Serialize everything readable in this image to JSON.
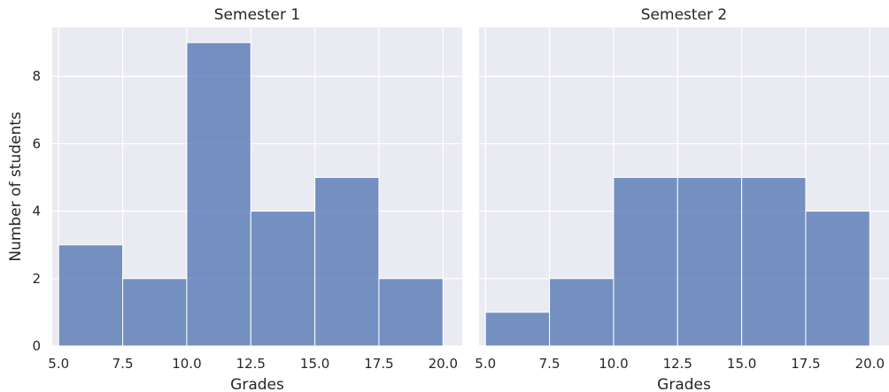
{
  "chart_data": [
    {
      "type": "bar",
      "title": "Semester 1",
      "xlabel": "Grades",
      "ylabel": "Number of students",
      "bin_edges": [
        5.0,
        7.5,
        10.0,
        12.5,
        15.0,
        17.5,
        20.0
      ],
      "values": [
        3,
        2,
        9,
        4,
        5,
        2
      ],
      "xticks": [
        "5.0",
        "7.5",
        "10.0",
        "12.5",
        "15.0",
        "17.5",
        "20.0"
      ],
      "yticks": [
        "0",
        "2",
        "4",
        "6",
        "8"
      ],
      "xlim": [
        4.75,
        20.75
      ],
      "ylim": [
        0,
        9.45
      ],
      "grid": true
    },
    {
      "type": "bar",
      "title": "Semester 2",
      "xlabel": "Grades",
      "ylabel": "",
      "bin_edges": [
        5.0,
        7.5,
        10.0,
        12.5,
        15.0,
        17.5,
        20.0
      ],
      "values": [
        1,
        2,
        5,
        5,
        5,
        4
      ],
      "xticks": [
        "5.0",
        "7.5",
        "10.0",
        "12.5",
        "15.0",
        "17.5",
        "20.0"
      ],
      "yticks": [],
      "xlim": [
        4.75,
        20.75
      ],
      "ylim": [
        0,
        9.45
      ],
      "grid": true
    }
  ],
  "style": {
    "bar_color": "#4C72B0",
    "panel_bg": "#EAEAF2",
    "grid_color": "#FFFFFF"
  }
}
